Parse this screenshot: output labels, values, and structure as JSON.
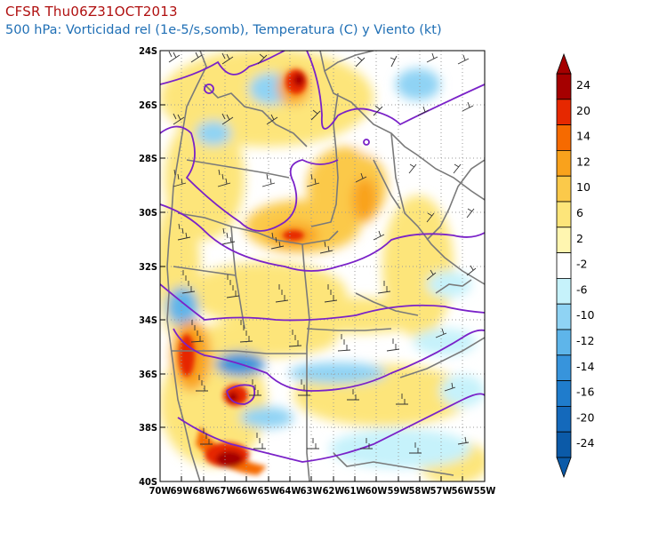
{
  "title": "CFSR Thu06Z31OCT2013",
  "subtitle": "500 hPa: Vorticidad rel (1e-5/s,somb), Temperatura (C) y Viento (kt)",
  "map": {
    "lat_labels": [
      "24S",
      "26S",
      "28S",
      "30S",
      "32S",
      "34S",
      "36S",
      "38S",
      "40S"
    ],
    "lon_labels": [
      "70W",
      "69W",
      "68W",
      "67W",
      "66W",
      "65W",
      "64W",
      "63W",
      "62W",
      "61W",
      "60W",
      "59W",
      "58W",
      "57W",
      "56W",
      "55W"
    ]
  },
  "colorbar": {
    "labels": [
      "24",
      "20",
      "14",
      "12",
      "10",
      "6",
      "2",
      "-2",
      "-6",
      "-10",
      "-12",
      "-14",
      "-16",
      "-20",
      "-24"
    ],
    "colors": [
      "#a50000",
      "#e62800",
      "#f66a00",
      "#f9a21c",
      "#fbc94a",
      "#fde57a",
      "#fff6b0",
      "#ffffff",
      "#c6f2fb",
      "#8fd3f4",
      "#5eb5ea",
      "#3794dc",
      "#1f7ccc",
      "#1469bb",
      "#0b5aa8"
    ]
  }
}
